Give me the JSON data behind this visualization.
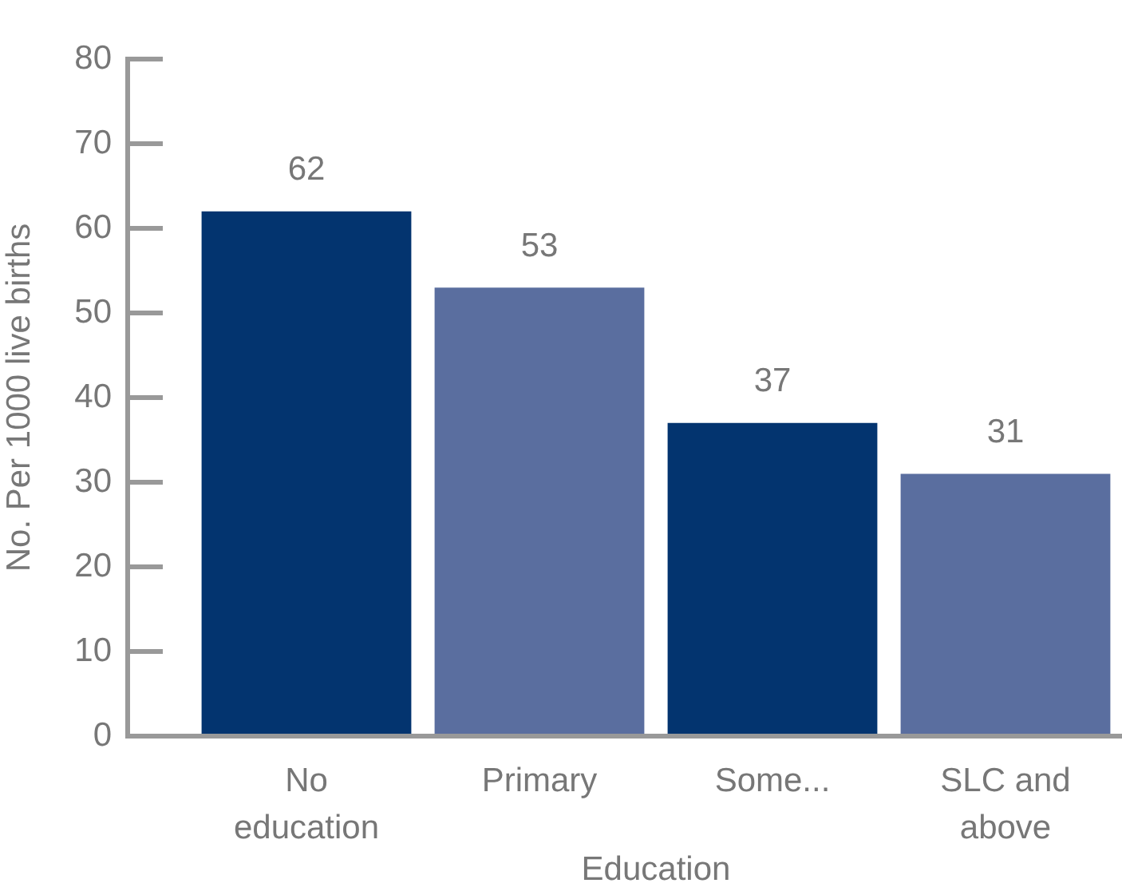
{
  "chart_data": {
    "type": "bar",
    "xlabel": "Education",
    "ylabel": "No. Per 1000 live births",
    "categories": [
      "No education",
      "Primary",
      "Some...",
      "SLC and above"
    ],
    "values": [
      62,
      53,
      37,
      31
    ],
    "colors": [
      "#03346f",
      "#5a6e9f",
      "#03346f",
      "#5a6e9f"
    ],
    "ylim": [
      0,
      80
    ],
    "yticks": [
      0,
      10,
      20,
      30,
      40,
      50,
      60,
      70,
      80
    ],
    "data_labels": true,
    "grid": false,
    "legend": false
  }
}
